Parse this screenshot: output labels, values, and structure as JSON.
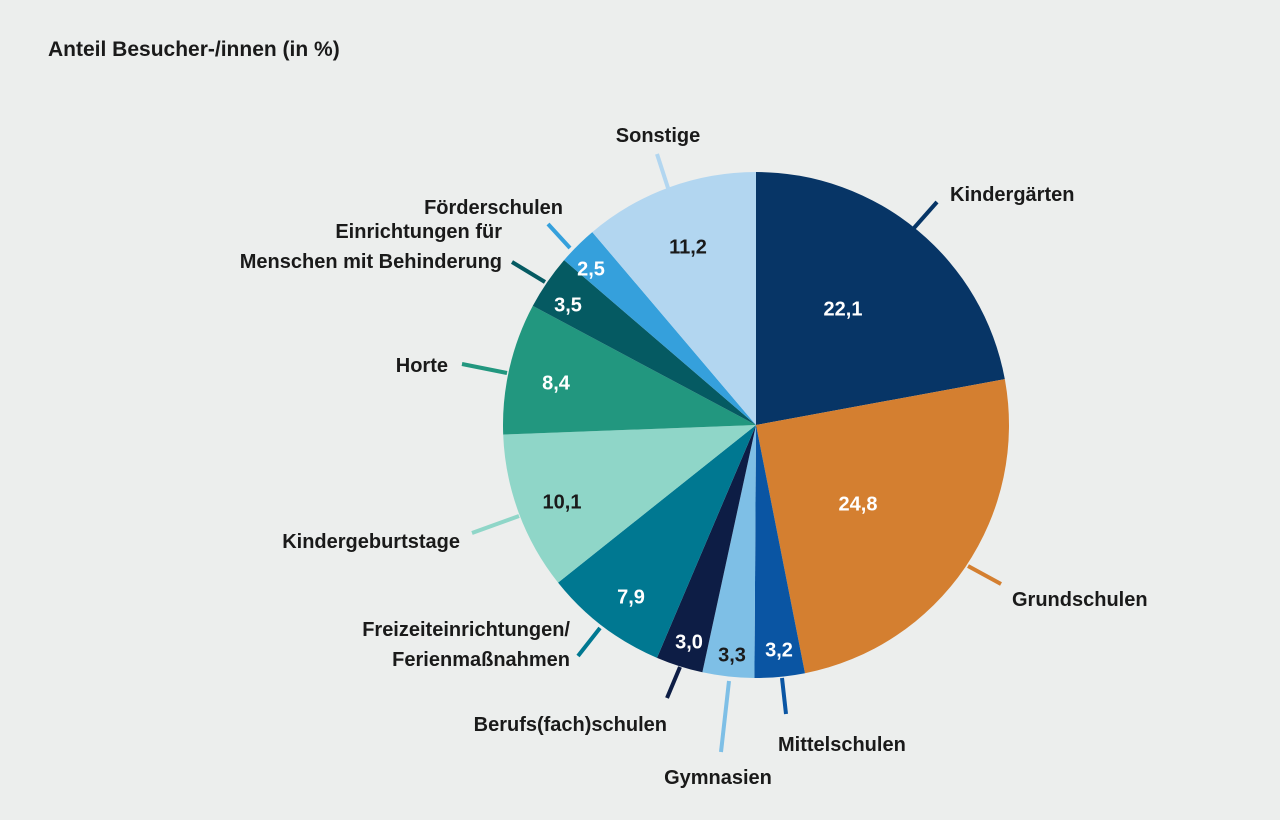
{
  "chart_data": {
    "type": "pie",
    "title": "Anteil Besucher-/innen (in %)",
    "start": "12 o'clock",
    "direction": "clockwise",
    "slices": [
      {
        "label": "Kindergärten",
        "value": 22.1,
        "value_text": "22,1",
        "color": "#073566",
        "text_color": "#ffffff"
      },
      {
        "label": "Grundschulen",
        "value": 24.8,
        "value_text": "24,8",
        "color": "#d47f30",
        "text_color": "#ffffff"
      },
      {
        "label": "Mittelschulen",
        "value": 3.2,
        "value_text": "3,2",
        "color": "#0a55a3",
        "text_color": "#ffffff"
      },
      {
        "label": "Gymnasien",
        "value": 3.3,
        "value_text": "3,3",
        "color": "#7ebfe6",
        "text_color": "#1a1a1a"
      },
      {
        "label": "Berufs(fach)schulen",
        "value": 3.0,
        "value_text": "3,0",
        "color": "#0d1d45",
        "text_color": "#ffffff"
      },
      {
        "label": "Freizeiteinrichtungen/ Ferienmaßnahmen",
        "label_lines": [
          "Freizeiteinrichtungen/",
          "Ferienmaßnahmen"
        ],
        "value": 7.9,
        "value_text": "7,9",
        "color": "#007891",
        "text_color": "#ffffff"
      },
      {
        "label": "Kindergeburtstage",
        "value": 10.1,
        "value_text": "10,1",
        "color": "#8fd6c8",
        "text_color": "#1a1a1a"
      },
      {
        "label": "Horte",
        "value": 8.4,
        "value_text": "8,4",
        "color": "#22977f",
        "text_color": "#ffffff"
      },
      {
        "label": "Einrichtungen für Menschen mit Behinderung",
        "label_lines": [
          "Einrichtungen für",
          "Menschen mit Behinderung"
        ],
        "value": 3.5,
        "value_text": "3,5",
        "color": "#055a62",
        "text_color": "#ffffff"
      },
      {
        "label": "Förderschulen",
        "value": 2.5,
        "value_text": "2,5",
        "color": "#35a0dc",
        "text_color": "#ffffff"
      },
      {
        "label": "Sonstige",
        "value": 11.2,
        "value_text": "11,2",
        "color": "#b2d6f0",
        "text_color": "#1a1a1a"
      }
    ]
  }
}
